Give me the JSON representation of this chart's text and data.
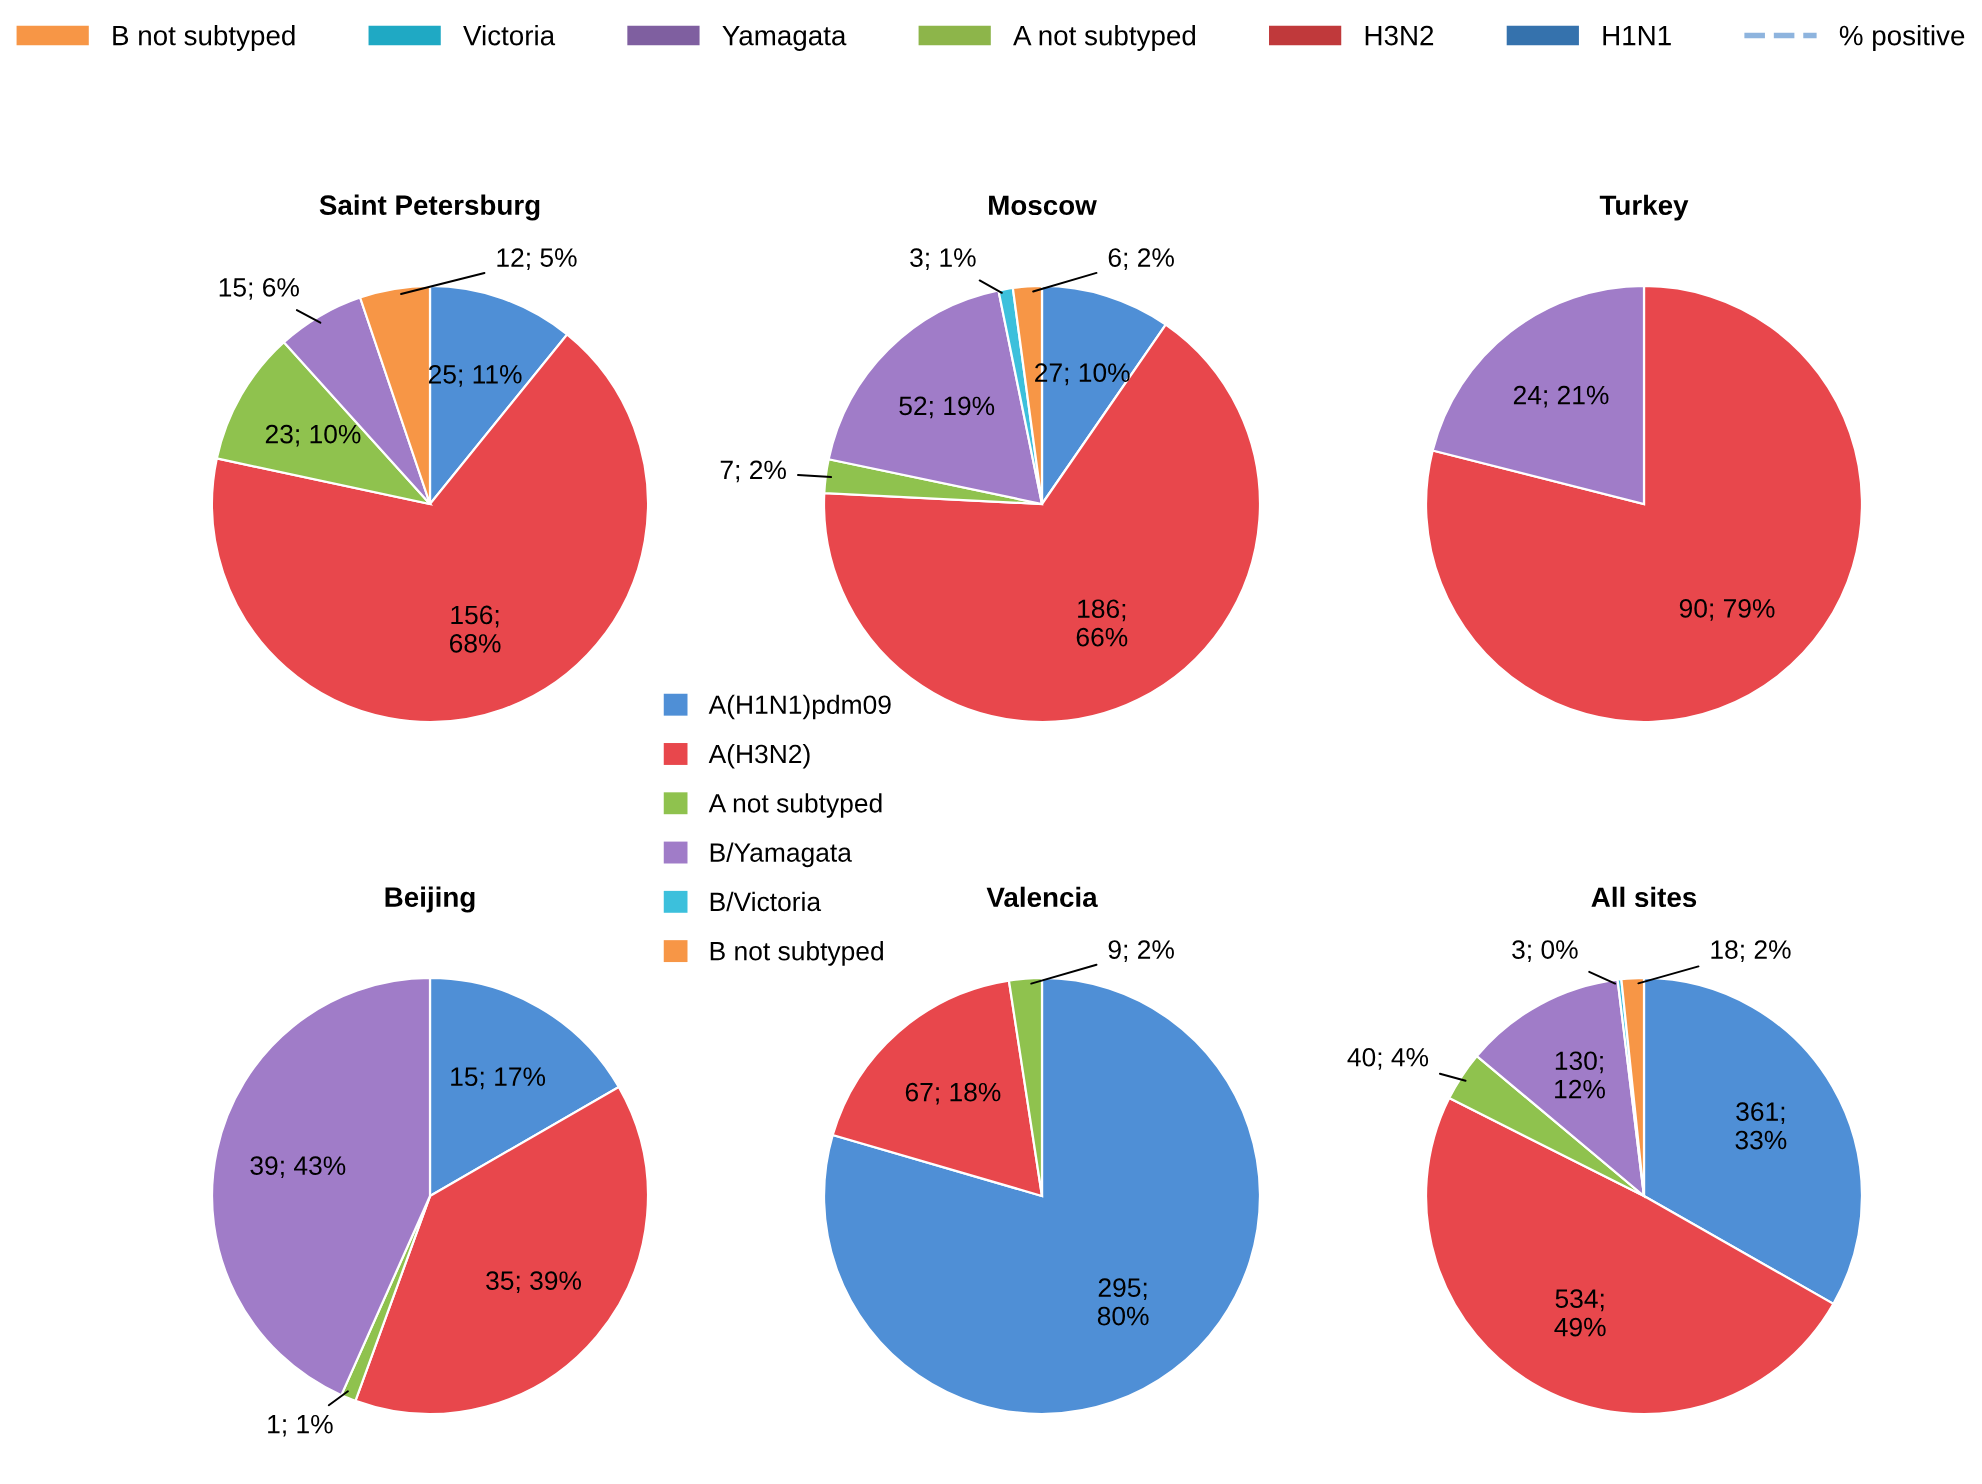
{
  "chart_data": [
    {
      "type": "other",
      "legend": "top",
      "series": [
        {
          "name": "B not subtyped",
          "color": "#f79646",
          "type": "bar"
        },
        {
          "name": "Victoria",
          "color": "#1fa9c4",
          "type": "bar"
        },
        {
          "name": "Yamagata",
          "color": "#7f5fa0",
          "type": "bar"
        },
        {
          "name": "A not subtyped",
          "color": "#8db54a",
          "type": "bar"
        },
        {
          "name": "H3N2",
          "color": "#c0393b",
          "type": "bar"
        },
        {
          "name": "H1N1",
          "color": "#3572ad",
          "type": "bar"
        },
        {
          "name": "% positive",
          "color": "#8eb4de",
          "type": "line",
          "line_style": "dashed"
        }
      ]
    },
    {
      "type": "pie",
      "title": "Saint Petersburg",
      "values": [
        25,
        156,
        23,
        15,
        12
      ],
      "value_labels": [
        "25; 11%",
        "156;\n68%",
        "23; 10%",
        "15; 6%",
        "12; 5%"
      ],
      "colors": [
        "#4f8fd6",
        "#e8474c",
        "#8fc24e",
        "#a07cc8",
        "#f79646"
      ]
    },
    {
      "type": "pie",
      "title": "Moscow",
      "legend": "bottom",
      "categories": [
        "A(H1N1)pdm09",
        "A(H3N2)",
        "A not subtyped",
        "B/Yamagata",
        "B/Victoria",
        "B not subtyped"
      ],
      "values": [
        27,
        186,
        7,
        52,
        3,
        6
      ],
      "value_labels": [
        "27; 10%",
        "186;\n66%",
        "7; 2%",
        "52; 19%",
        "3; 1%",
        "6; 2%"
      ],
      "colors": [
        "#4f8fd6",
        "#e8474c",
        "#8fc24e",
        "#a07cc8",
        "#3cc0dc",
        "#f79646"
      ]
    },
    {
      "type": "pie",
      "title": "Turkey",
      "values": [
        90,
        24
      ],
      "value_labels": [
        "90; 79%",
        "24; 21%"
      ],
      "colors": [
        "#e8474c",
        "#a07cc8"
      ]
    },
    {
      "type": "pie",
      "title": "Beijing",
      "values": [
        15,
        35,
        1,
        39
      ],
      "value_labels": [
        "15; 17%",
        "35; 39%",
        "1; 1%",
        "39; 43%"
      ],
      "colors": [
        "#4f8fd6",
        "#e8474c",
        "#8fc24e",
        "#a07cc8"
      ]
    },
    {
      "type": "pie",
      "title": "Valencia",
      "values": [
        295,
        67,
        9
      ],
      "value_labels": [
        "295;\n80%",
        "67; 18%",
        "9; 2%"
      ],
      "colors": [
        "#4f8fd6",
        "#e8474c",
        "#8fc24e"
      ]
    },
    {
      "type": "pie",
      "title": "All sites",
      "values": [
        361,
        534,
        40,
        130,
        3,
        18
      ],
      "value_labels": [
        "361;\n33%",
        "534;\n49%",
        "40; 4%",
        "130;\n12%",
        "3; 0%",
        "18; 2%"
      ],
      "colors": [
        "#4f8fd6",
        "#e8474c",
        "#8fc24e",
        "#a07cc8",
        "#3cc0dc",
        "#f79646"
      ]
    }
  ]
}
